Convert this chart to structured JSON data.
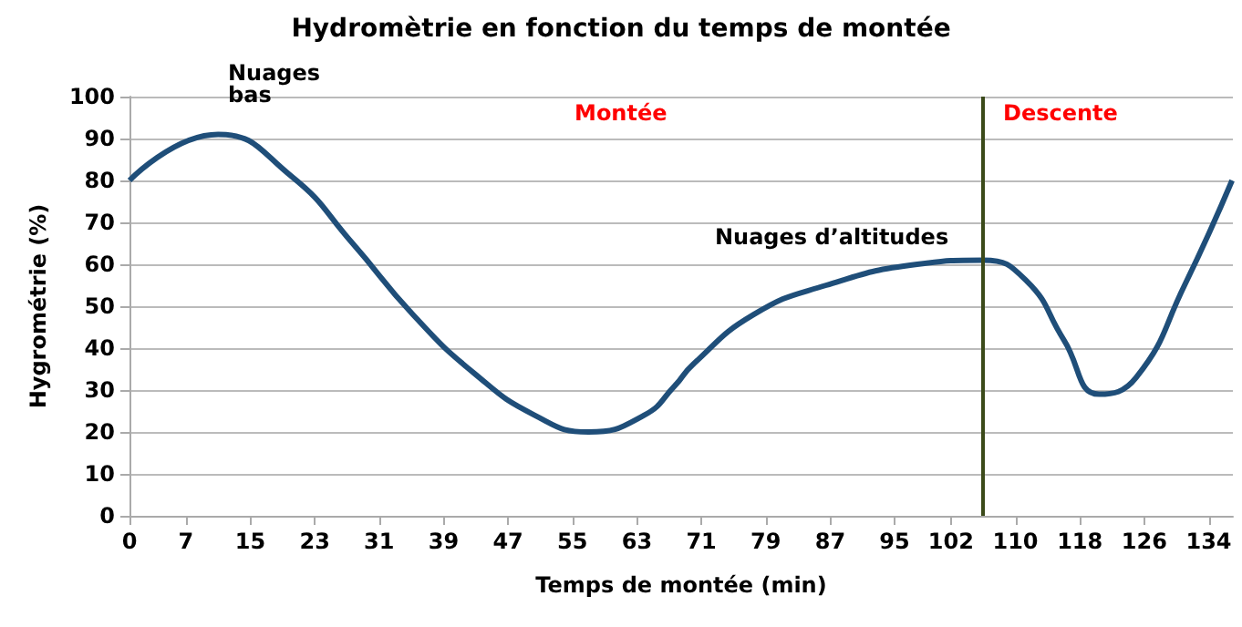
{
  "chart_data": {
    "type": "line",
    "title": "Hydromètrie en fonction du temps de montée",
    "xlabel": "Temps de montée (min)",
    "ylabel": "Hygrométrie (%)",
    "x": [
      0,
      11,
      20.1,
      27.7,
      35.2,
      42.8,
      50.3,
      57,
      63.9,
      67.7,
      69.9,
      77.5,
      86.5,
      97.8,
      106,
      111.4,
      116,
      120.4,
      125,
      131,
      136.9
    ],
    "series": [
      {
        "color": "#1f4e79",
        "values": [
          80,
          91,
          81,
          65,
          48,
          34,
          24,
          20,
          24,
          31,
          36,
          48,
          55,
          60,
          61,
          56,
          42,
          29,
          33,
          55,
          80
        ]
      }
    ],
    "xlim": [
      0,
      137
    ],
    "xticks": [
      0,
      7,
      15,
      23,
      31,
      39,
      47,
      55,
      63,
      71,
      79,
      87,
      95,
      102,
      110,
      118,
      126,
      134
    ],
    "ylim": [
      0,
      100
    ],
    "yticks": [
      0,
      10,
      20,
      30,
      40,
      50,
      60,
      70,
      80,
      90,
      100
    ],
    "grid": "y",
    "marker": "none",
    "line_style": "solid",
    "ref_lines": [
      {
        "axis": "x",
        "value": 106,
        "color": "#3b4a1a"
      }
    ],
    "annotations": [
      "Nuages bas",
      "Montée",
      "Descente",
      "Nuages d’altitudes"
    ]
  }
}
